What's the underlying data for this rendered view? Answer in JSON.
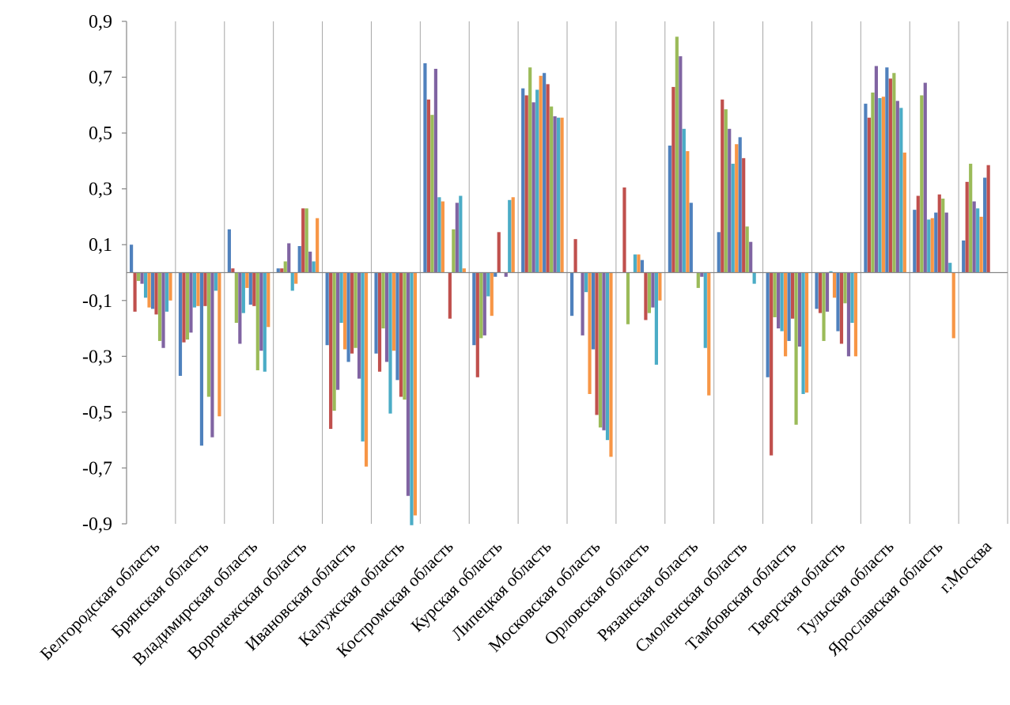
{
  "chart_data": {
    "type": "bar",
    "title": "",
    "xlabel": "",
    "ylabel": "",
    "ylim": [
      -0.9,
      0.9
    ],
    "y_ticks": [
      0.9,
      0.7,
      0.5,
      0.3,
      0.1,
      -0.1,
      -0.3,
      -0.5,
      -0.7,
      -0.9
    ],
    "y_tick_labels": [
      "0,9",
      "0,7",
      "0,5",
      "0,3",
      "0,1",
      "-0,1",
      "-0,3",
      "-0,5",
      "-0,7",
      "-0,9"
    ],
    "grid": "vertical gridlines between categories",
    "legend": "none",
    "categories": [
      "Белгородская область",
      "Брянская область",
      "Владимирская область",
      "Воронежская область",
      "Ивановская область",
      "Калужская область",
      "Костромская область",
      "Курская область",
      "Липецкая область",
      "Московская область",
      "Орловская область",
      "Рязанская область",
      "Смоленская область",
      "Тамбовская область",
      "Тверская область",
      "Тульская область",
      "Ярославская область",
      "г.Москва"
    ],
    "series_colors": [
      "#4f81bd",
      "#c0504d",
      "#9bbb59",
      "#8064a2",
      "#4bacc6",
      "#f79646",
      "#4f81bd",
      "#c0504d",
      "#9bbb59",
      "#8064a2",
      "#4bacc6",
      "#f79646"
    ],
    "series": [
      {
        "values": [
          0.1,
          -0.37,
          0.155,
          0.015,
          -0.26,
          -0.29,
          0.75,
          -0.26,
          0.66,
          -0.155,
          0.0,
          0.455,
          0.145,
          -0.375,
          -0.13,
          0.605,
          0.225,
          0.115
        ]
      },
      {
        "values": [
          -0.14,
          -0.25,
          0.015,
          0.015,
          -0.56,
          -0.355,
          0.62,
          -0.375,
          0.635,
          0.12,
          0.305,
          0.665,
          0.62,
          -0.655,
          -0.145,
          0.555,
          0.275,
          0.325
        ]
      },
      {
        "values": [
          -0.03,
          -0.24,
          -0.18,
          0.04,
          -0.495,
          -0.2,
          0.565,
          -0.235,
          0.735,
          0.0,
          -0.185,
          0.845,
          0.585,
          -0.16,
          -0.245,
          0.645,
          0.635,
          0.39
        ]
      },
      {
        "values": [
          -0.04,
          -0.215,
          -0.255,
          0.105,
          -0.42,
          -0.32,
          0.73,
          -0.225,
          0.61,
          -0.225,
          0.0,
          0.775,
          0.515,
          -0.2,
          -0.14,
          0.74,
          0.68,
          0.255
        ]
      },
      {
        "values": [
          -0.09,
          -0.125,
          -0.145,
          -0.065,
          -0.18,
          -0.505,
          0.27,
          -0.085,
          0.655,
          -0.07,
          0.065,
          0.515,
          0.39,
          -0.21,
          0.005,
          0.625,
          0.19,
          0.23
        ]
      },
      {
        "values": [
          -0.125,
          -0.12,
          -0.055,
          -0.04,
          -0.275,
          -0.28,
          0.255,
          -0.155,
          0.705,
          -0.435,
          0.065,
          0.435,
          0.46,
          -0.3,
          -0.09,
          0.63,
          0.195,
          0.2
        ]
      },
      {
        "values": [
          -0.13,
          -0.62,
          -0.115,
          0.095,
          -0.32,
          -0.385,
          0.0,
          -0.015,
          0.715,
          -0.275,
          0.045,
          0.25,
          0.485,
          -0.245,
          -0.21,
          0.735,
          0.215,
          0.34
        ]
      },
      {
        "values": [
          -0.15,
          -0.12,
          -0.12,
          0.23,
          -0.29,
          -0.445,
          -0.165,
          0.145,
          0.675,
          -0.51,
          -0.17,
          0.0,
          0.41,
          -0.165,
          -0.255,
          0.695,
          0.28,
          0.385
        ]
      },
      {
        "values": [
          -0.245,
          -0.445,
          -0.35,
          0.23,
          -0.27,
          -0.455,
          0.155,
          0.0,
          0.595,
          -0.555,
          -0.145,
          -0.055,
          0.165,
          -0.545,
          -0.11,
          0.715,
          0.265,
          0.0
        ]
      },
      {
        "values": [
          -0.27,
          -0.59,
          -0.28,
          0.075,
          -0.38,
          -0.8,
          0.25,
          -0.015,
          0.56,
          -0.565,
          -0.125,
          -0.015,
          0.11,
          -0.265,
          -0.3,
          0.615,
          0.215,
          0.0
        ]
      },
      {
        "values": [
          -0.14,
          -0.065,
          -0.355,
          0.04,
          -0.605,
          -0.905,
          0.275,
          0.26,
          0.555,
          -0.6,
          -0.33,
          -0.27,
          -0.04,
          -0.435,
          -0.18,
          0.59,
          0.035,
          0.0
        ]
      },
      {
        "values": [
          -0.1,
          -0.515,
          -0.195,
          0.195,
          -0.695,
          -0.87,
          0.015,
          0.27,
          0.555,
          -0.66,
          -0.1,
          -0.44,
          0.0,
          -0.43,
          -0.3,
          0.43,
          -0.235,
          0.0
        ]
      }
    ]
  }
}
